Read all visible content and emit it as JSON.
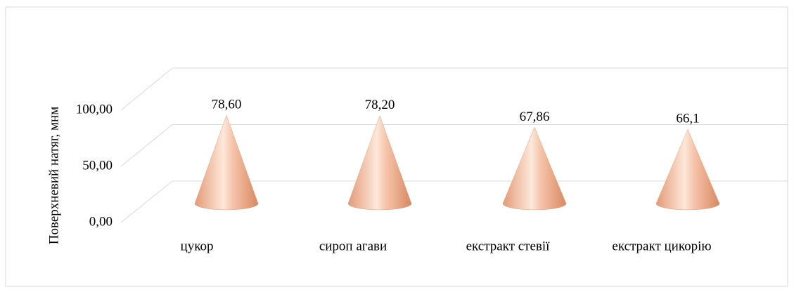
{
  "chart_data": {
    "type": "cone",
    "y_label": "Поверхневий натяг, мнм",
    "categories": [
      "цукор",
      "сироп агави",
      "екстракт стевії",
      "екстракт цикорію"
    ],
    "values": [
      78.6,
      78.2,
      67.86,
      66.1
    ],
    "value_labels": [
      "78,60",
      "78,20",
      "67,86",
      "66,1"
    ],
    "color": "#f0a888",
    "ylim": [
      0,
      100
    ],
    "yticks": [
      {
        "value": 0,
        "label": "0,00"
      },
      {
        "value": 50,
        "label": "50,00"
      },
      {
        "value": 100,
        "label": "100,00"
      }
    ],
    "grid": true
  }
}
